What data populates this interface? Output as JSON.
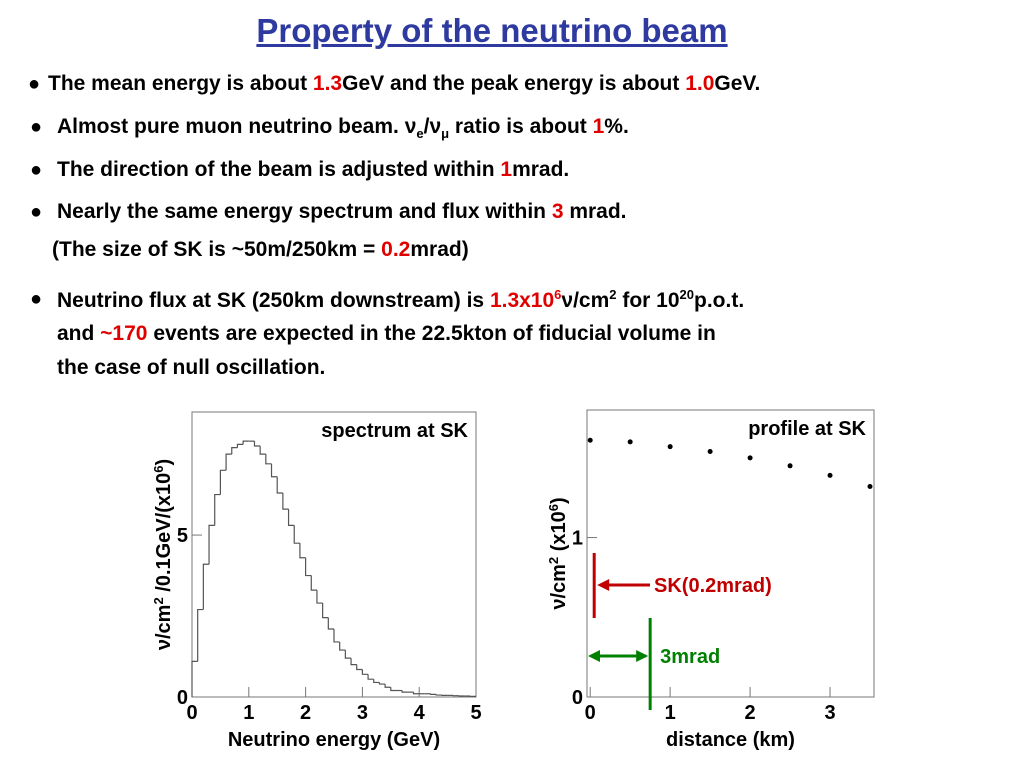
{
  "title": "Property of the neutrino beam",
  "bullets": [
    {
      "lines": [
        [
          {
            "text": "The mean energy is about "
          },
          {
            "text": "1.3",
            "color": "#e00000"
          },
          {
            "text": "GeV and the peak energy is about "
          },
          {
            "text": "1.0",
            "color": "#e00000"
          },
          {
            "text": "GeV."
          }
        ]
      ]
    },
    {
      "lines": [
        [
          {
            "text": "Almost pure muon neutrino beam. ν"
          },
          {
            "text": "e",
            "script": "sub"
          },
          {
            "text": "/ν"
          },
          {
            "text": "μ",
            "script": "sub"
          },
          {
            "text": " ratio is about "
          },
          {
            "text": "1",
            "color": "#e00000"
          },
          {
            "text": "%."
          }
        ]
      ]
    },
    {
      "lines": [
        [
          {
            "text": "The direction of the beam is adjusted within "
          },
          {
            "text": "1",
            "color": "#e00000"
          },
          {
            "text": "mrad."
          }
        ]
      ]
    },
    {
      "lines": [
        [
          {
            "text": "Nearly the same energy spectrum and flux within "
          },
          {
            "text": "3",
            "color": "#e00000"
          },
          {
            "text": " mrad."
          }
        ],
        [
          {
            "text": "(The size of SK is ~50m/250km = "
          },
          {
            "text": "0.2",
            "color": "#e00000"
          },
          {
            "text": "mrad)"
          }
        ]
      ]
    },
    {
      "lines": [
        [
          {
            "text": "Neutrino flux at SK (250km downstream) is "
          },
          {
            "text": "1.3x10",
            "color": "#e00000"
          },
          {
            "text": "6",
            "color": "#e00000",
            "script": "sup"
          },
          {
            "text": "ν/cm"
          },
          {
            "text": "2",
            "script": "sup"
          },
          {
            "text": " for 10"
          },
          {
            "text": "20",
            "script": "sup"
          },
          {
            "text": "p.o.t."
          }
        ],
        [
          {
            "text": "and "
          },
          {
            "text": "~170",
            "color": "#e00000"
          },
          {
            "text": " events are expected in the 22.5kton of fiducial volume in"
          }
        ],
        [
          {
            "text": "the case of null oscillation."
          }
        ]
      ]
    }
  ],
  "chart_data": [
    {
      "type": "histogram",
      "title": "spectrum at SK",
      "xlabel": "Neutrino energy (GeV)",
      "ylabel": [
        {
          "text": "ν/cm"
        },
        {
          "text": "2",
          "script": "sup"
        },
        {
          "text": " /0.1GeV/(x10"
        },
        {
          "text": "6",
          "script": "sup"
        },
        {
          "text": ")"
        }
      ],
      "bins": [
        0,
        0.1,
        0.2,
        0.3,
        0.4,
        0.5,
        0.6,
        0.7,
        0.8,
        0.9,
        1.0,
        1.1,
        1.2,
        1.3,
        1.4,
        1.5,
        1.6,
        1.7,
        1.8,
        1.9,
        2.0,
        2.1,
        2.2,
        2.3,
        2.4,
        2.5,
        2.6,
        2.7,
        2.8,
        2.9,
        3.0,
        3.1,
        3.2,
        3.3,
        3.4,
        3.5,
        3.6,
        3.7,
        3.8,
        3.9,
        4.0,
        4.1,
        4.2,
        4.3,
        4.4,
        4.5,
        4.6,
        4.7,
        4.8,
        4.9,
        5.0
      ],
      "counts": [
        1.1,
        2.7,
        4.1,
        5.3,
        6.25,
        7.0,
        7.5,
        7.7,
        7.8,
        7.9,
        7.9,
        7.75,
        7.5,
        7.2,
        6.8,
        6.3,
        5.8,
        5.3,
        4.75,
        4.3,
        3.75,
        3.3,
        2.9,
        2.45,
        2.1,
        1.7,
        1.45,
        1.2,
        1.0,
        0.85,
        0.7,
        0.55,
        0.45,
        0.4,
        0.3,
        0.2,
        0.2,
        0.15,
        0.15,
        0.1,
        0.1,
        0.1,
        0.08,
        0.06,
        0.05,
        0.05,
        0.04,
        0.03,
        0.03,
        0.02
      ],
      "color": "#555555",
      "xlim": [
        0,
        5
      ],
      "ylim": [
        0,
        8.8
      ],
      "xticks": [
        0,
        1,
        2,
        3,
        4,
        5
      ],
      "yticks": [
        0,
        5
      ]
    },
    {
      "type": "scatter",
      "title": "profile at SK",
      "xlabel": "distance (km)",
      "ylabel": [
        {
          "text": "ν/cm"
        },
        {
          "text": "2",
          "script": "sup"
        },
        {
          "text": " (x10"
        },
        {
          "text": "6",
          "script": "sup"
        },
        {
          "text": ")"
        }
      ],
      "x": [
        0,
        0.5,
        1.0,
        1.5,
        2.0,
        2.5,
        3.0,
        3.5
      ],
      "values": [
        1.61,
        1.6,
        1.57,
        1.54,
        1.5,
        1.45,
        1.39,
        1.32
      ],
      "color": "#000000",
      "xlim": [
        -0.04,
        3.55
      ],
      "ylim": [
        0,
        1.8
      ],
      "xticks": [
        0,
        1,
        2,
        3
      ],
      "yticks": [
        0,
        1
      ],
      "markers": [
        {
          "label": "SK(0.2mrad)",
          "x": 0.05,
          "color": "#c00000"
        },
        {
          "label": "3mrad",
          "x": 0.75,
          "color": "#008000"
        }
      ]
    }
  ]
}
